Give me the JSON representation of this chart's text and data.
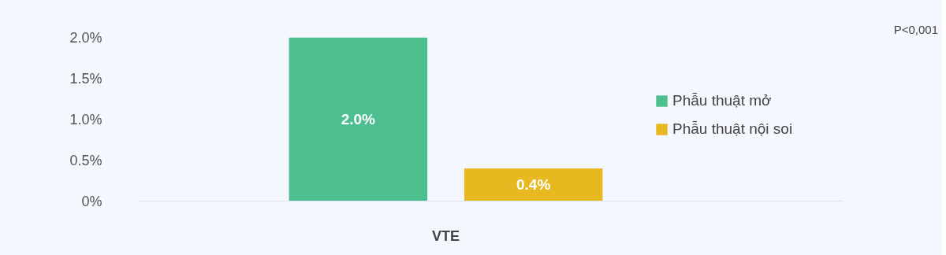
{
  "chart_data": {
    "type": "bar",
    "categories": [
      "VTE"
    ],
    "series": [
      {
        "name": "Phẫu thuật mở",
        "color": "#4dbf8f",
        "values": [
          2.0
        ],
        "value_labels": [
          "2.0%"
        ]
      },
      {
        "name": "Phẫu thuật nội soi",
        "color": "#e8b820",
        "values": [
          0.4
        ],
        "value_labels": [
          "0.4%"
        ]
      }
    ],
    "ylim": [
      0,
      2.0
    ],
    "yticks": [
      {
        "value": 0,
        "label": "0%"
      },
      {
        "value": 0.5,
        "label": "0.5%"
      },
      {
        "value": 1.0,
        "label": "1.0%"
      },
      {
        "value": 1.5,
        "label": "1.5%"
      },
      {
        "value": 2.0,
        "label": "2.0%"
      }
    ],
    "annotations": [
      "P<0,001"
    ],
    "grid": false,
    "legend": "right"
  }
}
